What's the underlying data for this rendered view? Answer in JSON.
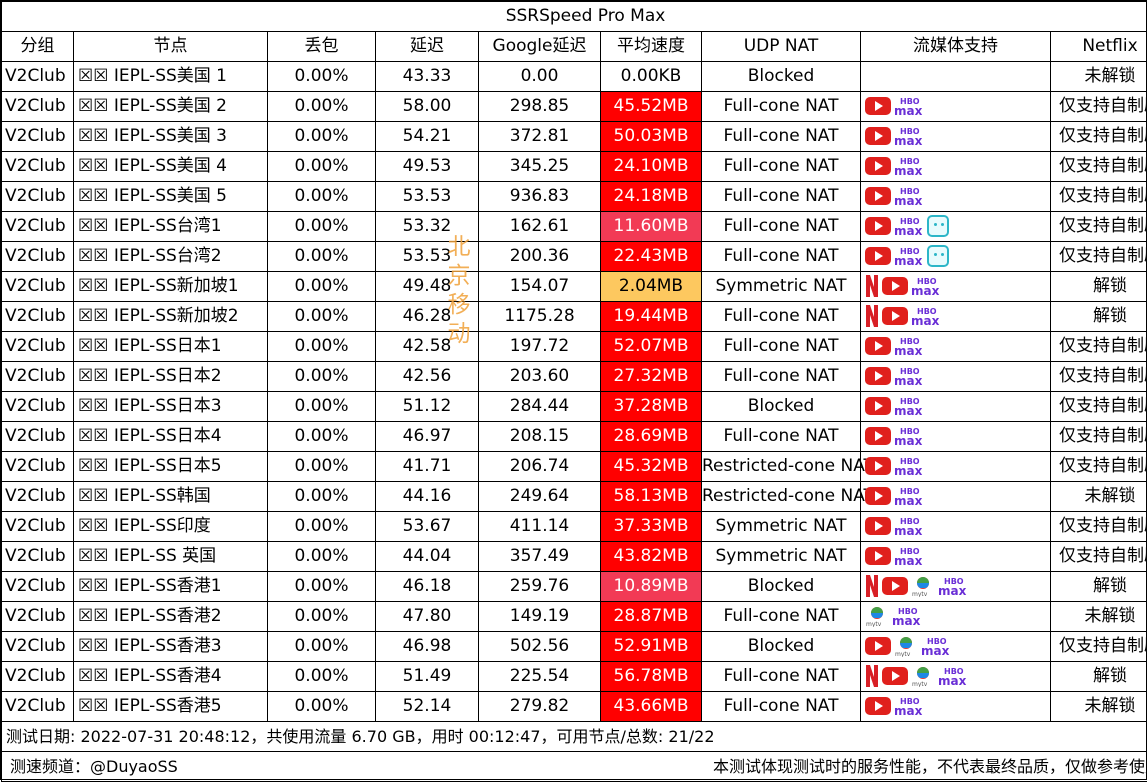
{
  "title": "SSRSpeed Pro Max",
  "headers": [
    "分组",
    "节点",
    "丢包",
    "延迟",
    "Google延迟",
    "平均速度",
    "UDP NAT",
    "流媒体支持",
    "Netflix"
  ],
  "watermark": [
    "北",
    "京",
    "移",
    "动"
  ],
  "colors": {
    "red": "#ff0000",
    "pink": "#f23a55",
    "yellow": "#fdc85f",
    "white": "#ffffff"
  },
  "rows": [
    {
      "group": "V2Club",
      "node": "☒☒ IEPL-SS美国 1",
      "loss": "0.00%",
      "latency": "43.33",
      "google": "0.00",
      "speed": "0.00KB",
      "speed_color": "white",
      "nat": "Blocked",
      "media": [],
      "netflix": "未解锁"
    },
    {
      "group": "V2Club",
      "node": "☒☒ IEPL-SS美国 2",
      "loss": "0.00%",
      "latency": "58.00",
      "google": "298.85",
      "speed": "45.52MB",
      "speed_color": "red",
      "nat": "Full-cone NAT",
      "media": [
        "youtube-icon",
        "hbo-max-icon"
      ],
      "netflix": "仅支持自制剧"
    },
    {
      "group": "V2Club",
      "node": "☒☒ IEPL-SS美国 3",
      "loss": "0.00%",
      "latency": "54.21",
      "google": "372.81",
      "speed": "50.03MB",
      "speed_color": "red",
      "nat": "Full-cone NAT",
      "media": [
        "youtube-icon",
        "hbo-max-icon"
      ],
      "netflix": "仅支持自制剧"
    },
    {
      "group": "V2Club",
      "node": "☒☒ IEPL-SS美国 4",
      "loss": "0.00%",
      "latency": "49.53",
      "google": "345.25",
      "speed": "24.10MB",
      "speed_color": "red",
      "nat": "Full-cone NAT",
      "media": [
        "youtube-icon",
        "hbo-max-icon"
      ],
      "netflix": "仅支持自制剧"
    },
    {
      "group": "V2Club",
      "node": "☒☒ IEPL-SS美国 5",
      "loss": "0.00%",
      "latency": "53.53",
      "google": "936.83",
      "speed": "24.18MB",
      "speed_color": "red",
      "nat": "Full-cone NAT",
      "media": [
        "youtube-icon",
        "hbo-max-icon"
      ],
      "netflix": "仅支持自制剧"
    },
    {
      "group": "V2Club",
      "node": "☒☒ IEPL-SS台湾1",
      "loss": "0.00%",
      "latency": "53.32",
      "google": "162.61",
      "speed": "11.60MB",
      "speed_color": "pink",
      "nat": "Full-cone NAT",
      "media": [
        "youtube-icon",
        "hbo-max-icon",
        "bilibili-icon"
      ],
      "netflix": "仅支持自制剧"
    },
    {
      "group": "V2Club",
      "node": "☒☒ IEPL-SS台湾2",
      "loss": "0.00%",
      "latency": "53.53",
      "google": "200.36",
      "speed": "22.43MB",
      "speed_color": "red",
      "nat": "Full-cone NAT",
      "media": [
        "youtube-icon",
        "hbo-max-icon",
        "bilibili-icon"
      ],
      "netflix": "仅支持自制剧"
    },
    {
      "group": "V2Club",
      "node": "☒☒ IEPL-SS新加坡1",
      "loss": "0.00%",
      "latency": "49.48",
      "google": "154.07",
      "speed": "2.04MB",
      "speed_color": "yellow",
      "nat": "Symmetric NAT",
      "media": [
        "netflix-icon",
        "youtube-icon",
        "hbo-max-icon"
      ],
      "netflix": "解锁"
    },
    {
      "group": "V2Club",
      "node": "☒☒ IEPL-SS新加坡2",
      "loss": "0.00%",
      "latency": "46.28",
      "google": "1175.28",
      "speed": "19.44MB",
      "speed_color": "red",
      "nat": "Full-cone NAT",
      "media": [
        "netflix-icon",
        "youtube-icon",
        "hbo-max-icon"
      ],
      "netflix": "解锁"
    },
    {
      "group": "V2Club",
      "node": "☒☒ IEPL-SS日本1",
      "loss": "0.00%",
      "latency": "42.58",
      "google": "197.72",
      "speed": "52.07MB",
      "speed_color": "red",
      "nat": "Full-cone NAT",
      "media": [
        "youtube-icon",
        "hbo-max-icon"
      ],
      "netflix": "仅支持自制剧"
    },
    {
      "group": "V2Club",
      "node": "☒☒ IEPL-SS日本2",
      "loss": "0.00%",
      "latency": "42.56",
      "google": "203.60",
      "speed": "27.32MB",
      "speed_color": "red",
      "nat": "Full-cone NAT",
      "media": [
        "youtube-icon",
        "hbo-max-icon"
      ],
      "netflix": "仅支持自制剧"
    },
    {
      "group": "V2Club",
      "node": "☒☒ IEPL-SS日本3",
      "loss": "0.00%",
      "latency": "51.12",
      "google": "284.44",
      "speed": "37.28MB",
      "speed_color": "red",
      "nat": "Blocked",
      "media": [
        "youtube-icon",
        "hbo-max-icon"
      ],
      "netflix": "仅支持自制剧"
    },
    {
      "group": "V2Club",
      "node": "☒☒ IEPL-SS日本4",
      "loss": "0.00%",
      "latency": "46.97",
      "google": "208.15",
      "speed": "28.69MB",
      "speed_color": "red",
      "nat": "Full-cone NAT",
      "media": [
        "youtube-icon",
        "hbo-max-icon"
      ],
      "netflix": "仅支持自制剧"
    },
    {
      "group": "V2Club",
      "node": "☒☒ IEPL-SS日本5",
      "loss": "0.00%",
      "latency": "41.71",
      "google": "206.74",
      "speed": "45.32MB",
      "speed_color": "red",
      "nat": "Restricted-cone NAT",
      "media": [
        "youtube-icon",
        "hbo-max-icon"
      ],
      "netflix": "仅支持自制剧"
    },
    {
      "group": "V2Club",
      "node": "☒☒ IEPL-SS韩国",
      "loss": "0.00%",
      "latency": "44.16",
      "google": "249.64",
      "speed": "58.13MB",
      "speed_color": "red",
      "nat": "Restricted-cone NAT",
      "media": [
        "youtube-icon",
        "hbo-max-icon"
      ],
      "netflix": "未解锁"
    },
    {
      "group": "V2Club",
      "node": "☒☒ IEPL-SS印度",
      "loss": "0.00%",
      "latency": "53.67",
      "google": "411.14",
      "speed": "37.33MB",
      "speed_color": "red",
      "nat": "Symmetric NAT",
      "media": [
        "youtube-icon",
        "hbo-max-icon"
      ],
      "netflix": "仅支持自制剧"
    },
    {
      "group": "V2Club",
      "node": "☒☒ IEPL-SS 英国",
      "loss": "0.00%",
      "latency": "44.04",
      "google": "357.49",
      "speed": "43.82MB",
      "speed_color": "red",
      "nat": "Symmetric NAT",
      "media": [
        "youtube-icon",
        "hbo-max-icon"
      ],
      "netflix": "仅支持自制剧"
    },
    {
      "group": "V2Club",
      "node": "☒☒ IEPL-SS香港1",
      "loss": "0.00%",
      "latency": "46.18",
      "google": "259.76",
      "speed": "10.89MB",
      "speed_color": "pink",
      "nat": "Blocked",
      "media": [
        "netflix-icon",
        "youtube-icon",
        "tvb-icon",
        "hbo-max-icon"
      ],
      "netflix": "解锁"
    },
    {
      "group": "V2Club",
      "node": "☒☒ IEPL-SS香港2",
      "loss": "0.00%",
      "latency": "47.80",
      "google": "149.19",
      "speed": "28.87MB",
      "speed_color": "red",
      "nat": "Full-cone NAT",
      "media": [
        "tvb-icon",
        "hbo-max-icon"
      ],
      "netflix": "未解锁"
    },
    {
      "group": "V2Club",
      "node": "☒☒ IEPL-SS香港3",
      "loss": "0.00%",
      "latency": "46.98",
      "google": "502.56",
      "speed": "52.91MB",
      "speed_color": "red",
      "nat": "Blocked",
      "media": [
        "youtube-icon",
        "tvb-icon",
        "hbo-max-icon"
      ],
      "netflix": "仅支持自制剧"
    },
    {
      "group": "V2Club",
      "node": "☒☒ IEPL-SS香港4",
      "loss": "0.00%",
      "latency": "51.49",
      "google": "225.54",
      "speed": "56.78MB",
      "speed_color": "red",
      "nat": "Full-cone NAT",
      "media": [
        "netflix-icon",
        "youtube-icon",
        "tvb-icon",
        "hbo-max-icon"
      ],
      "netflix": "解锁"
    },
    {
      "group": "V2Club",
      "node": "☒☒ IEPL-SS香港5",
      "loss": "0.00%",
      "latency": "52.14",
      "google": "279.82",
      "speed": "43.66MB",
      "speed_color": "red",
      "nat": "Full-cone NAT",
      "media": [
        "youtube-icon",
        "hbo-max-icon"
      ],
      "netflix": "未解锁"
    }
  ],
  "footer": {
    "line1": "测试日期: 2022-07-31 20:48:12，共使用流量 6.70 GB，用时 00:12:47，可用节点/总数: 21/22",
    "channel": "测速频道：@DuyaoSS",
    "disclaimer": "本测试体现测试时的服务性能，不代表最终品质，仅做参考使用"
  }
}
